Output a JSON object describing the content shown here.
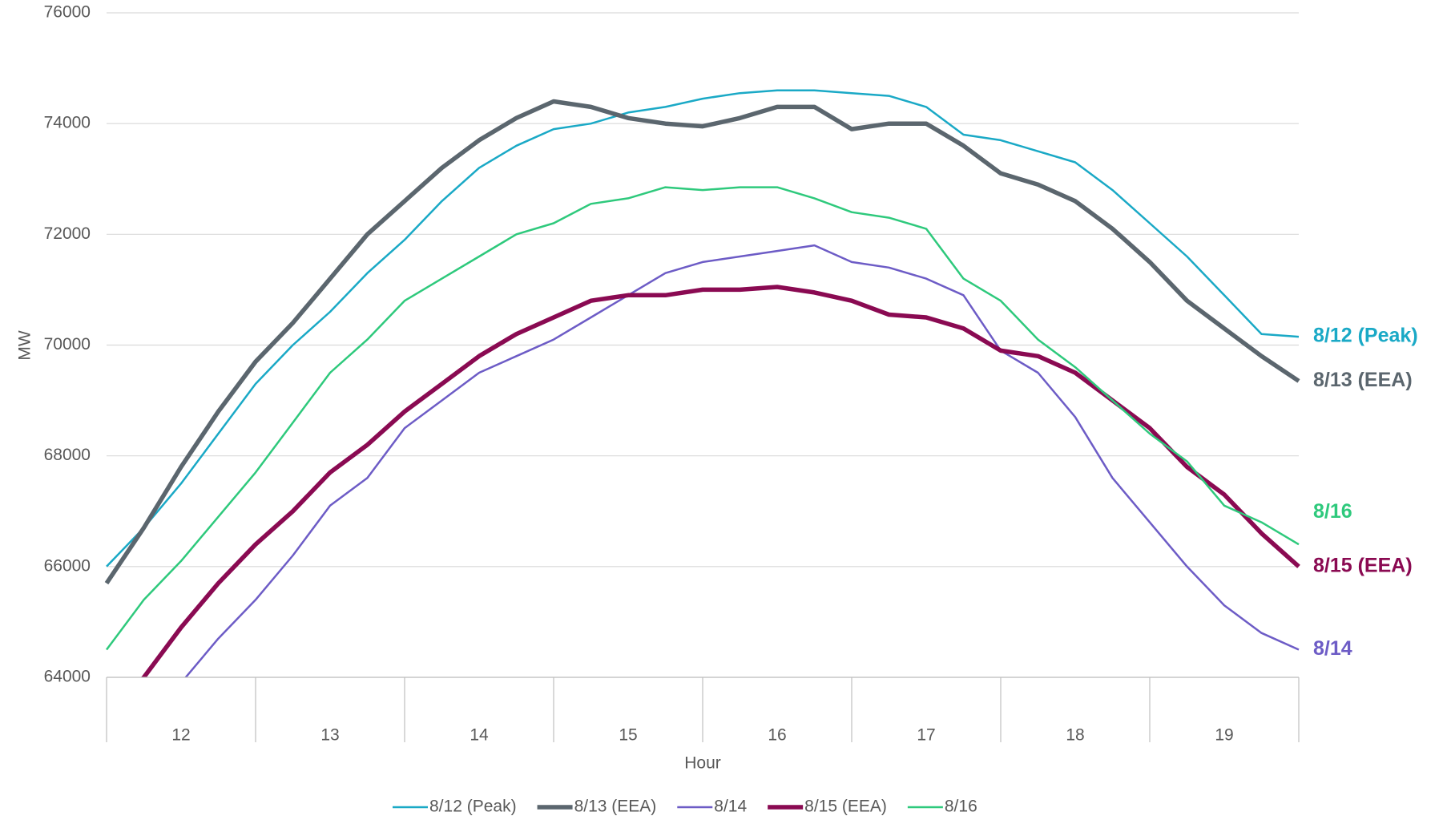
{
  "chart_data": {
    "type": "line",
    "x_label": "Hour",
    "y_label": "MW",
    "categories": [
      12,
      13,
      14,
      15,
      16,
      17,
      18,
      19
    ],
    "xlim": [
      12,
      20
    ],
    "x": [
      12,
      12.25,
      12.5,
      12.75,
      13,
      13.25,
      13.5,
      13.75,
      14,
      14.25,
      14.5,
      14.75,
      15,
      15.25,
      15.5,
      15.75,
      16,
      16.25,
      16.5,
      16.75,
      17,
      17.25,
      17.5,
      17.75,
      18,
      18.25,
      18.5,
      18.75,
      19,
      19.25,
      19.5,
      19.75,
      20
    ],
    "ylim": [
      64000,
      76000
    ],
    "yticks": [
      64000,
      66000,
      68000,
      70000,
      72000,
      74000,
      76000
    ],
    "grid": true,
    "legend": "bottom",
    "series": [
      {
        "name": "8/12 (Peak)",
        "color": "#1aa9c6",
        "line_width": 2.5,
        "values": [
          66000,
          66700,
          67500,
          68400,
          69300,
          70000,
          70600,
          71300,
          71900,
          72600,
          73200,
          73600,
          73900,
          74000,
          74200,
          74300,
          74450,
          74550,
          74600,
          74600,
          74550,
          74500,
          74300,
          73800,
          73700,
          73500,
          73300,
          72800,
          72200,
          71600,
          70900,
          70200,
          70150
        ]
      },
      {
        "name": "8/13 (EEA)",
        "color": "#5b666e",
        "line_width": 5.5,
        "values": [
          65700,
          66700,
          67800,
          68800,
          69700,
          70400,
          71200,
          72000,
          72600,
          73200,
          73700,
          74100,
          74400,
          74300,
          74100,
          74000,
          73950,
          74100,
          74300,
          74300,
          73900,
          74000,
          74000,
          73600,
          73100,
          72900,
          72600,
          72100,
          71500,
          70800,
          70300,
          69800,
          69350
        ]
      },
      {
        "name": "8/14",
        "color": "#6d5cc6",
        "line_width": 2.5,
        "values": [
          62800,
          63400,
          63900,
          64700,
          65400,
          66200,
          67100,
          67600,
          68500,
          69000,
          69500,
          69800,
          70100,
          70500,
          70900,
          71300,
          71500,
          71600,
          71700,
          71800,
          71500,
          71400,
          71200,
          70900,
          69900,
          69500,
          68700,
          67600,
          66800,
          66000,
          65300,
          64800,
          64500
        ]
      },
      {
        "name": "8/15 (EEA)",
        "color": "#8a0a52",
        "line_width": 5.5,
        "values": [
          63300,
          64000,
          64900,
          65700,
          66400,
          67000,
          67700,
          68200,
          68800,
          69300,
          69800,
          70200,
          70500,
          70800,
          70900,
          70900,
          71000,
          71000,
          71050,
          70950,
          70800,
          70550,
          70500,
          70300,
          69900,
          69800,
          69500,
          69000,
          68500,
          67800,
          67300,
          66600,
          66000
        ]
      },
      {
        "name": "8/16",
        "color": "#2ec97c",
        "line_width": 2.5,
        "values": [
          64500,
          65400,
          66100,
          66900,
          67700,
          68600,
          69500,
          70100,
          70800,
          71200,
          71600,
          72000,
          72200,
          72550,
          72650,
          72850,
          72800,
          72850,
          72850,
          72650,
          72400,
          72300,
          72100,
          71200,
          70800,
          70100,
          69600,
          69000,
          68400,
          67900,
          67100,
          66800,
          66400
        ]
      }
    ]
  }
}
